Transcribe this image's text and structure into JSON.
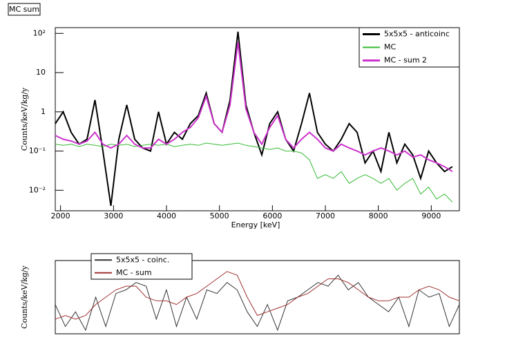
{
  "chart_data": [
    {
      "type": "line",
      "title": "MC sum",
      "x_label": "Energy [keV]",
      "y_label": "Counts/keV/kg/y",
      "log_y": true,
      "xlim": [
        1900,
        9530
      ],
      "ylim": [
        0.003,
        140
      ],
      "xticks": [
        2000,
        3000,
        4000,
        5000,
        6000,
        7000,
        8000,
        9000
      ],
      "yticks": [
        {
          "value": 0.01,
          "label": "10⁻²"
        },
        {
          "value": 0.1,
          "label": "10⁻¹"
        },
        1,
        10,
        {
          "value": 100,
          "label": "10²"
        }
      ],
      "x": [
        1900,
        2050,
        2200,
        2350,
        2500,
        2650,
        2800,
        2950,
        3100,
        3250,
        3400,
        3550,
        3700,
        3850,
        4000,
        4150,
        4300,
        4450,
        4600,
        4750,
        4900,
        5050,
        5200,
        5350,
        5500,
        5650,
        5800,
        5950,
        6100,
        6250,
        6400,
        6550,
        6700,
        6850,
        7000,
        7150,
        7300,
        7450,
        7600,
        7750,
        7900,
        8050,
        8200,
        8350,
        8500,
        8650,
        8800,
        8950,
        9100,
        9250,
        9400
      ],
      "series": [
        {
          "name": "5x5x5 - anticoinc",
          "color": "#000000",
          "width": 2,
          "values": [
            0.5,
            1,
            0.3,
            0.15,
            0.2,
            2,
            0.1,
            0.004,
            0.2,
            1.5,
            0.2,
            0.12,
            0.1,
            1,
            0.15,
            0.3,
            0.2,
            0.5,
            0.8,
            3,
            0.5,
            0.3,
            2,
            110,
            1.5,
            0.3,
            0.08,
            0.5,
            1,
            0.2,
            0.1,
            0.5,
            3,
            0.3,
            0.15,
            0.1,
            0.2,
            0.5,
            0.3,
            0.05,
            0.1,
            0.03,
            0.3,
            0.05,
            0.15,
            0.08,
            0.02,
            0.1,
            0.05,
            0.03,
            0.04
          ]
        },
        {
          "name": "MC",
          "color": "#33bb33",
          "width": 1,
          "values": [
            0.15,
            0.14,
            0.15,
            0.13,
            0.15,
            0.14,
            0.13,
            0.15,
            0.14,
            0.15,
            0.13,
            0.14,
            0.15,
            0.14,
            0.15,
            0.13,
            0.14,
            0.15,
            0.14,
            0.16,
            0.15,
            0.14,
            0.15,
            0.16,
            0.14,
            0.13,
            0.12,
            0.11,
            0.12,
            0.1,
            0.1,
            0.09,
            0.06,
            0.02,
            0.025,
            0.02,
            0.03,
            0.015,
            0.02,
            0.025,
            0.02,
            0.015,
            0.02,
            0.01,
            0.015,
            0.02,
            0.008,
            0.012,
            0.006,
            0.008,
            0.005
          ]
        },
        {
          "name": "MC - sum 2",
          "color": "#cc33cc",
          "width": 2,
          "values": [
            0.25,
            0.2,
            0.18,
            0.15,
            0.18,
            0.3,
            0.15,
            0.12,
            0.15,
            0.25,
            0.15,
            0.12,
            0.12,
            0.2,
            0.15,
            0.2,
            0.3,
            0.4,
            0.7,
            2.5,
            0.5,
            0.3,
            1.5,
            60,
            1.2,
            0.3,
            0.15,
            0.4,
            0.8,
            0.2,
            0.12,
            0.2,
            0.3,
            0.2,
            0.12,
            0.1,
            0.15,
            0.12,
            0.1,
            0.08,
            0.1,
            0.12,
            0.1,
            0.08,
            0.1,
            0.07,
            0.08,
            0.06,
            0.05,
            0.04,
            0.03
          ]
        }
      ]
    },
    {
      "type": "line",
      "y_label": "Counts/keV/kg/y",
      "log_y": false,
      "xlim": [
        0,
        40
      ],
      "ylim": [
        0,
        1
      ],
      "x": [
        0,
        1,
        2,
        3,
        4,
        5,
        6,
        7,
        8,
        9,
        10,
        11,
        12,
        13,
        14,
        15,
        16,
        17,
        18,
        19,
        20,
        21,
        22,
        23,
        24,
        25,
        26,
        27,
        28,
        29,
        30,
        31,
        32,
        33,
        34,
        35,
        36,
        37,
        38,
        39,
        40
      ],
      "series": [
        {
          "name": "5x5x5 - coinc.",
          "color": "#333333",
          "width": 1,
          "values": [
            0.4,
            0.1,
            0.3,
            0.05,
            0.5,
            0.1,
            0.55,
            0.6,
            0.7,
            0.65,
            0.2,
            0.6,
            0.1,
            0.5,
            0.2,
            0.6,
            0.55,
            0.7,
            0.6,
            0.3,
            0.1,
            0.4,
            0.05,
            0.45,
            0.5,
            0.6,
            0.7,
            0.65,
            0.8,
            0.6,
            0.7,
            0.5,
            0.4,
            0.3,
            0.5,
            0.1,
            0.6,
            0.5,
            0.55,
            0.1,
            0.4
          ]
        },
        {
          "name": "MC - sum",
          "color": "#a03030",
          "width": 1,
          "values": [
            0.2,
            0.25,
            0.2,
            0.25,
            0.4,
            0.5,
            0.6,
            0.65,
            0.65,
            0.5,
            0.45,
            0.45,
            0.4,
            0.5,
            0.55,
            0.65,
            0.75,
            0.85,
            0.8,
            0.5,
            0.25,
            0.3,
            0.35,
            0.4,
            0.5,
            0.55,
            0.65,
            0.75,
            0.75,
            0.7,
            0.6,
            0.5,
            0.45,
            0.45,
            0.5,
            0.5,
            0.6,
            0.65,
            0.6,
            0.5,
            0.45
          ]
        }
      ]
    }
  ]
}
